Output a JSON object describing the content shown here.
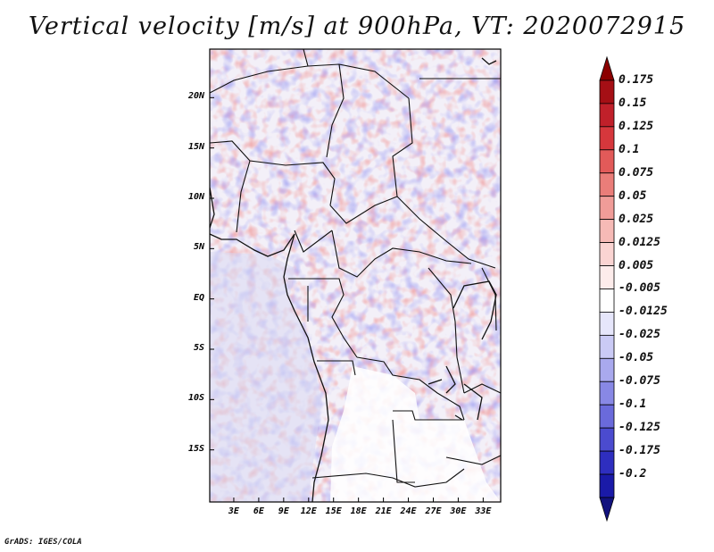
{
  "title": "Vertical velocity [m/s] at 900hPa, VT: 2020072915",
  "credit": "GrADS: IGES/COLA",
  "map": {
    "region": "Central Africa",
    "lat_range": [
      -20,
      25
    ],
    "lon_range": [
      0,
      35
    ],
    "lat_ticks": [
      {
        "value": 20,
        "label": "20N"
      },
      {
        "value": 15,
        "label": "15N"
      },
      {
        "value": 10,
        "label": "10N"
      },
      {
        "value": 5,
        "label": "5N"
      },
      {
        "value": 0,
        "label": "EQ"
      },
      {
        "value": -5,
        "label": "5S"
      },
      {
        "value": -10,
        "label": "10S"
      },
      {
        "value": -15,
        "label": "15S"
      }
    ],
    "lon_ticks": [
      {
        "value": 3,
        "label": "3E"
      },
      {
        "value": 6,
        "label": "6E"
      },
      {
        "value": 9,
        "label": "9E"
      },
      {
        "value": 12,
        "label": "12E"
      },
      {
        "value": 15,
        "label": "15E"
      },
      {
        "value": 18,
        "label": "18E"
      },
      {
        "value": 21,
        "label": "21E"
      },
      {
        "value": 24,
        "label": "24E"
      },
      {
        "value": 27,
        "label": "27E"
      },
      {
        "value": 30,
        "label": "30E"
      },
      {
        "value": 33,
        "label": "33E"
      }
    ]
  },
  "colorbar": {
    "levels": [
      {
        "label": "0.175",
        "color": "#a50f15"
      },
      {
        "label": "0.15",
        "color": "#c0202a"
      },
      {
        "label": "0.125",
        "color": "#d6373c"
      },
      {
        "label": "0.1",
        "color": "#e25a59"
      },
      {
        "label": "0.075",
        "color": "#ea7d79"
      },
      {
        "label": "0.05",
        "color": "#f09c98"
      },
      {
        "label": "0.025",
        "color": "#f6bab6"
      },
      {
        "label": "0.0125",
        "color": "#fad4d2"
      },
      {
        "label": "0.005",
        "color": "#fdeceb"
      },
      {
        "label": "-0.005",
        "color": "#ffffff"
      },
      {
        "label": "-0.0125",
        "color": "#e6e6fb"
      },
      {
        "label": "-0.025",
        "color": "#cacaf5"
      },
      {
        "label": "-0.05",
        "color": "#a9a9ee"
      },
      {
        "label": "-0.075",
        "color": "#8888e5"
      },
      {
        "label": "-0.1",
        "color": "#6a6adb"
      },
      {
        "label": "-0.125",
        "color": "#4b4bcf"
      },
      {
        "label": "-0.175",
        "color": "#2e2ebf"
      },
      {
        "label": "-0.2",
        "color": "#1a1aa8"
      }
    ],
    "top_tip_color": "#8b0000",
    "bottom_tip_color": "#12127e"
  }
}
